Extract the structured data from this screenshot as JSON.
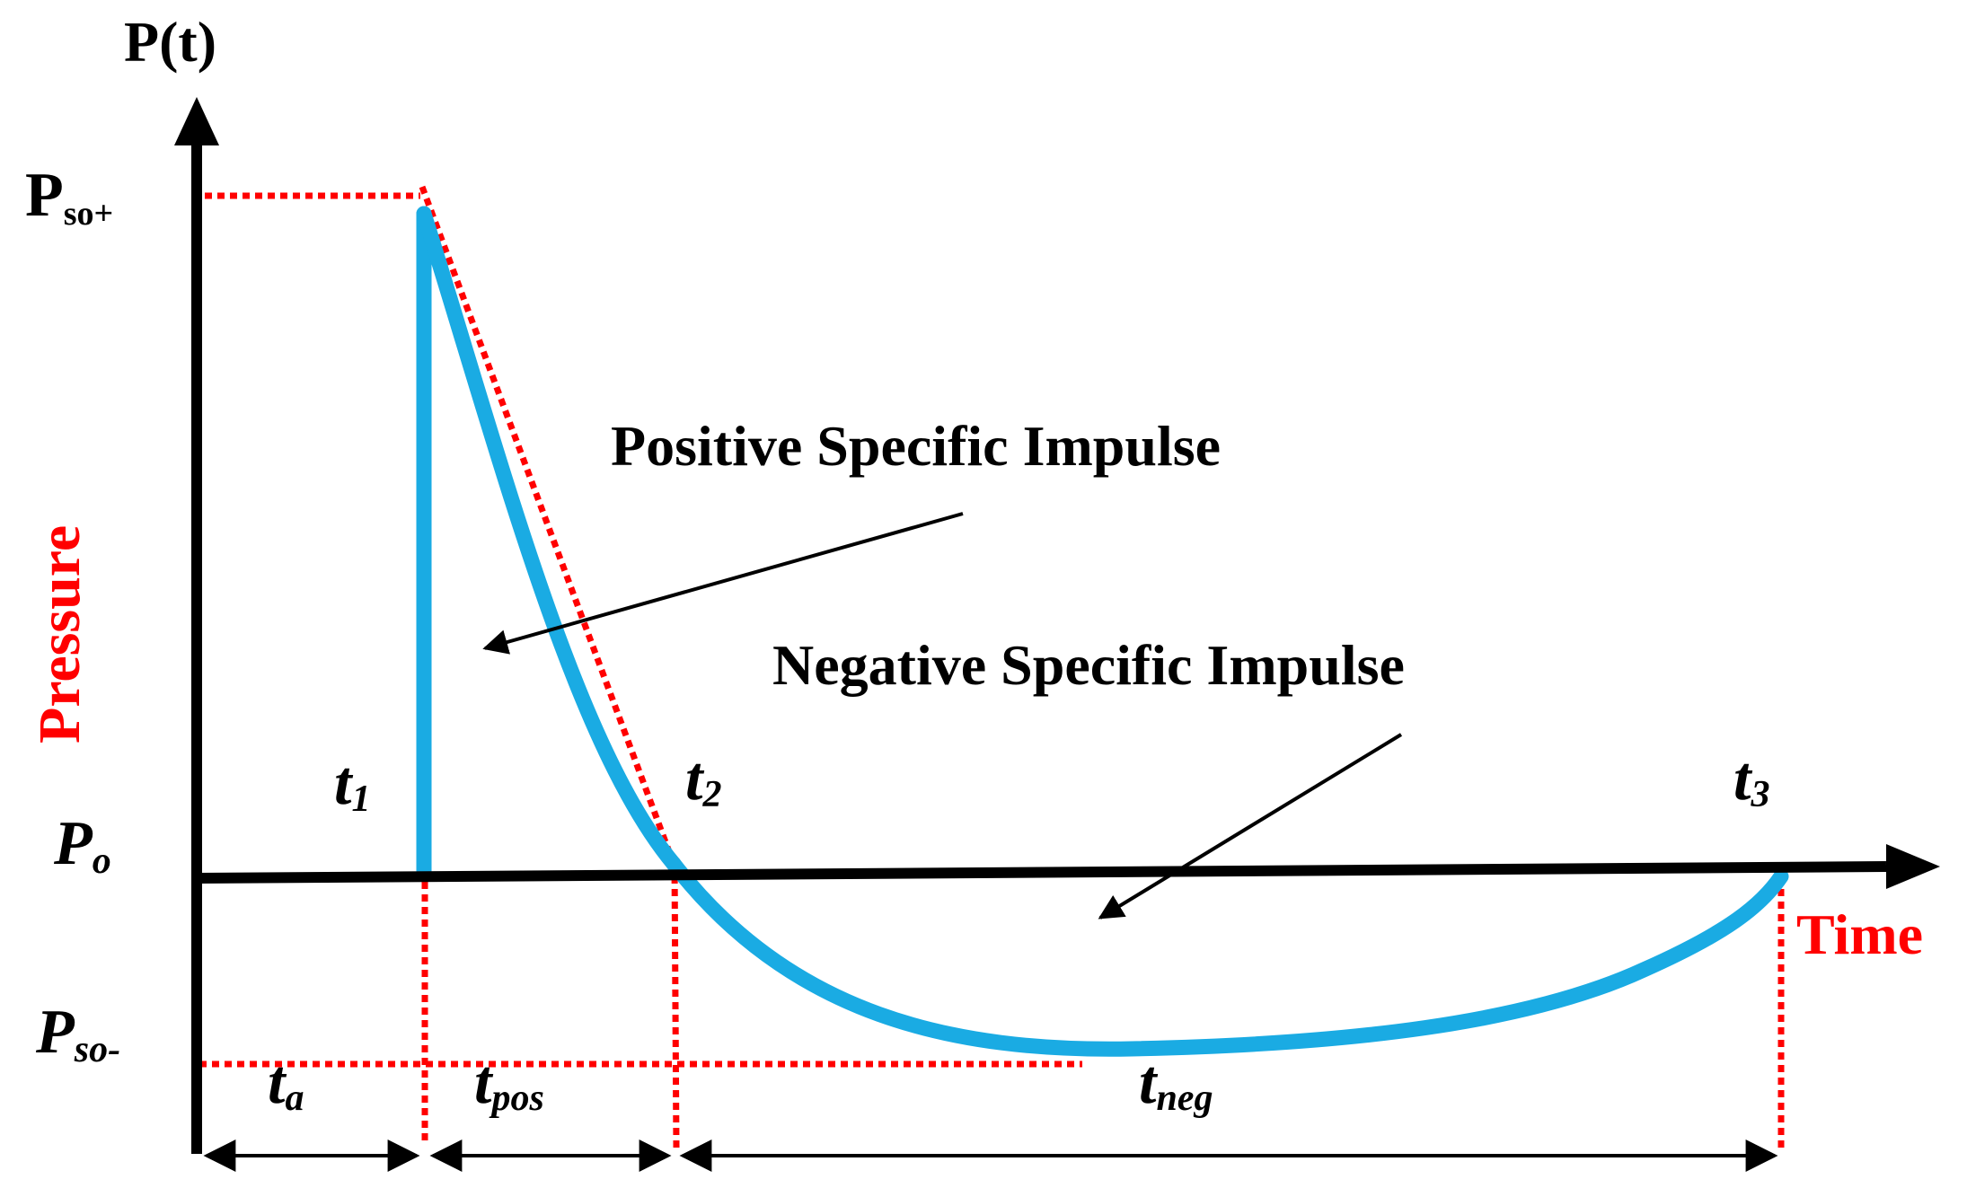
{
  "axes": {
    "y_axis_title": "P(t)",
    "y_side_label": "Pressure",
    "x_side_label": "Time"
  },
  "pressure_levels": {
    "peak_positive": {
      "main": "P",
      "sub": "so+"
    },
    "ambient": {
      "main": "P",
      "sub": "o"
    },
    "peak_negative": {
      "main": "P",
      "sub": "so-"
    }
  },
  "time_markers": {
    "t1": {
      "main": "t",
      "sub": "1"
    },
    "t2": {
      "main": "t",
      "sub": "2"
    },
    "t3": {
      "main": "t",
      "sub": "3"
    }
  },
  "durations": {
    "arrival": {
      "main": "t",
      "sub": "a"
    },
    "positive": {
      "main": "t",
      "sub": "pos"
    },
    "negative": {
      "main": "t",
      "sub": "neg"
    }
  },
  "annotations": {
    "positive_impulse": "Positive Specific Impulse",
    "negative_impulse": "Negative Specific Impulse"
  },
  "colors": {
    "axis": "#000000",
    "curve": "#1aabe3",
    "guide": "#ff0000",
    "label_accent": "#ff0000",
    "text": "#000000"
  }
}
